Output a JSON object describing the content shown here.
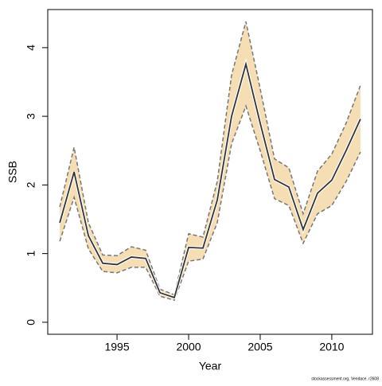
{
  "chart_data": {
    "type": "line",
    "x": [
      1991,
      1992,
      1993,
      1994,
      1995,
      1996,
      1997,
      1998,
      1999,
      2000,
      2001,
      2002,
      2003,
      2004,
      2005,
      2006,
      2007,
      2008,
      2009,
      2010,
      2011,
      2012
    ],
    "values": [
      1.45,
      2.19,
      1.26,
      0.86,
      0.84,
      0.95,
      0.93,
      0.43,
      0.36,
      1.09,
      1.08,
      1.78,
      3.0,
      3.76,
      2.9,
      2.08,
      1.97,
      1.35,
      1.88,
      2.07,
      2.5,
      2.96
    ],
    "upper": [
      1.68,
      2.55,
      1.45,
      0.98,
      0.97,
      1.1,
      1.05,
      0.48,
      0.4,
      1.29,
      1.24,
      2.05,
      3.6,
      4.38,
      3.4,
      2.38,
      2.25,
      1.58,
      2.2,
      2.45,
      2.9,
      3.45
    ],
    "lower": [
      1.18,
      1.82,
      1.07,
      0.74,
      0.72,
      0.8,
      0.8,
      0.38,
      0.32,
      0.89,
      0.92,
      1.45,
      2.6,
      3.15,
      2.5,
      1.8,
      1.7,
      1.15,
      1.58,
      1.7,
      2.05,
      2.48
    ],
    "color": "#333333",
    "band_color": "#f5deb3",
    "bound_color": "#777777",
    "xlabel": "Year",
    "ylabel": "SSB",
    "xlim": [
      1990.16,
      2012.84
    ],
    "xticks": [
      1995,
      2000,
      2005,
      2010
    ],
    "ylim": [
      -0.175,
      4.555
    ],
    "yticks": [
      0,
      1,
      2,
      3,
      4
    ],
    "footnote": "stockassessment.org, Vendace, r2608"
  }
}
